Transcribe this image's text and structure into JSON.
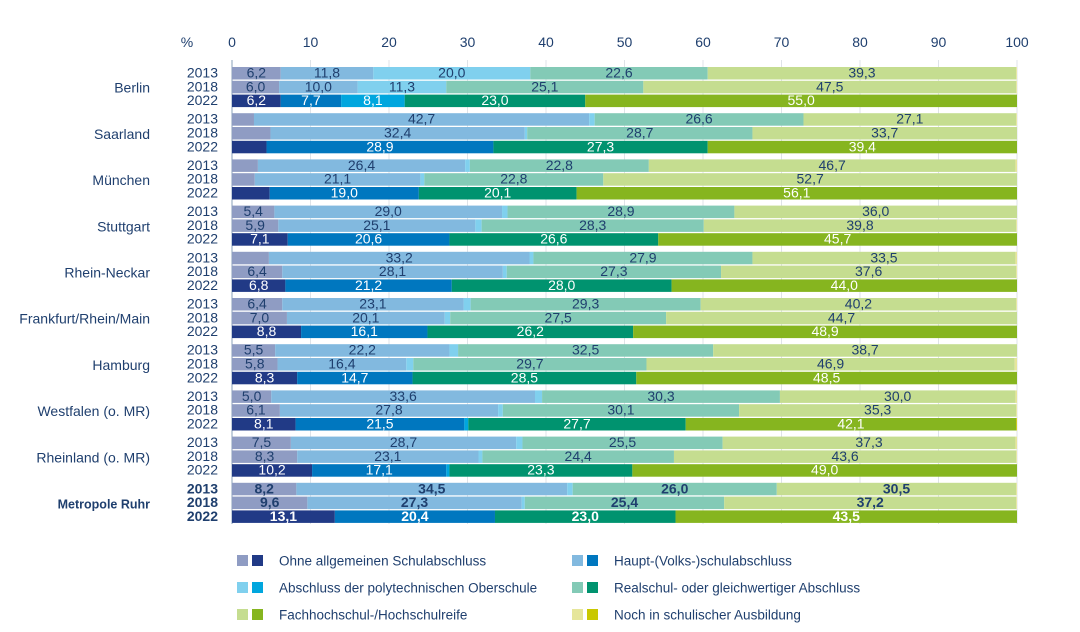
{
  "chart_data": {
    "type": "bar",
    "orientation": "horizontal",
    "stacked": true,
    "xlabel": "%",
    "xlim": [
      0,
      100
    ],
    "xticks": [
      0,
      10,
      20,
      30,
      40,
      50,
      60,
      70,
      80,
      90,
      100
    ],
    "grid": true,
    "legend_position": "bottom",
    "series_names": [
      "Ohne allgemeinen Schulabschluss",
      "Haupt-(Volks-)schulabschluss",
      "Abschluss der polytechnischen Oberschule",
      "Realschul- oder gleichwertiger Abschluss",
      "Fachhochschul-/Hochschulreife",
      "Noch in schulischer Ausbildung"
    ],
    "colors_light": [
      "#8f9cc3",
      "#82b9df",
      "#80d0ee",
      "#83cab6",
      "#c5dd90",
      "#e6e69a"
    ],
    "colors_dark": [
      "#213a86",
      "#0077bf",
      "#00a6de",
      "#00936f",
      "#86b51f",
      "#c9c800"
    ],
    "groups": [
      {
        "name": "Berlin",
        "bold": false,
        "rows": [
          {
            "year": "2013",
            "values": [
              6.2,
              11.8,
              20.0,
              22.6,
              39.3,
              0.1
            ]
          },
          {
            "year": "2018",
            "values": [
              6.0,
              10.0,
              11.3,
              25.1,
              47.5,
              0.1
            ]
          },
          {
            "year": "2022",
            "values": [
              6.2,
              7.7,
              8.1,
              23.0,
              55.0,
              0.0
            ]
          }
        ]
      },
      {
        "name": "Saarland",
        "bold": false,
        "rows": [
          {
            "year": "2013",
            "values": [
              2.8,
              42.7,
              0.7,
              26.6,
              27.1,
              0.1
            ]
          },
          {
            "year": "2018",
            "values": [
              4.9,
              32.4,
              0.3,
              28.7,
              33.7,
              0.0
            ]
          },
          {
            "year": "2022",
            "values": [
              4.4,
              28.9,
              0.0,
              27.3,
              39.4,
              0.0
            ]
          }
        ]
      },
      {
        "name": "München",
        "bold": false,
        "rows": [
          {
            "year": "2013",
            "values": [
              3.3,
              26.4,
              0.6,
              22.8,
              46.7,
              0.2
            ]
          },
          {
            "year": "2018",
            "values": [
              2.9,
              21.1,
              0.5,
              22.8,
              52.7,
              0.0
            ]
          },
          {
            "year": "2022",
            "values": [
              4.8,
              19.0,
              0.0,
              20.1,
              56.1,
              0.0
            ]
          }
        ]
      },
      {
        "name": "Stuttgart",
        "bold": false,
        "rows": [
          {
            "year": "2013",
            "values": [
              5.4,
              29.0,
              0.7,
              28.9,
              36.0,
              0.0
            ]
          },
          {
            "year": "2018",
            "values": [
              5.9,
              25.1,
              0.8,
              28.3,
              39.8,
              0.1
            ]
          },
          {
            "year": "2022",
            "values": [
              7.1,
              20.6,
              0.0,
              26.6,
              45.7,
              0.0
            ]
          }
        ]
      },
      {
        "name": "Rhein-Neckar",
        "bold": false,
        "rows": [
          {
            "year": "2013",
            "values": [
              4.7,
              33.2,
              0.5,
              27.9,
              33.5,
              0.2
            ]
          },
          {
            "year": "2018",
            "values": [
              6.4,
              28.1,
              0.5,
              27.3,
              37.6,
              0.1
            ]
          },
          {
            "year": "2022",
            "values": [
              6.8,
              21.2,
              0.0,
              28.0,
              44.0,
              0.0
            ]
          }
        ]
      },
      {
        "name": "Frankfurt/Rhein/Main",
        "bold": false,
        "rows": [
          {
            "year": "2013",
            "values": [
              6.4,
              23.1,
              0.9,
              29.3,
              40.2,
              0.1
            ]
          },
          {
            "year": "2018",
            "values": [
              7.0,
              20.1,
              0.7,
              27.5,
              44.7,
              0.0
            ]
          },
          {
            "year": "2022",
            "values": [
              8.8,
              16.1,
              0.0,
              26.2,
              48.9,
              0.0
            ]
          }
        ]
      },
      {
        "name": "Hamburg",
        "bold": false,
        "rows": [
          {
            "year": "2013",
            "values": [
              5.5,
              22.2,
              1.1,
              32.5,
              38.7,
              0.0
            ]
          },
          {
            "year": "2018",
            "values": [
              5.8,
              16.4,
              0.9,
              29.7,
              46.9,
              0.3
            ]
          },
          {
            "year": "2022",
            "values": [
              8.3,
              14.7,
              0.0,
              28.5,
              48.5,
              0.0
            ]
          }
        ]
      },
      {
        "name": "Westfalen (o. MR)",
        "bold": false,
        "rows": [
          {
            "year": "2013",
            "values": [
              5.0,
              33.6,
              0.9,
              30.3,
              30.0,
              0.2
            ]
          },
          {
            "year": "2018",
            "values": [
              6.1,
              27.8,
              0.6,
              30.1,
              35.3,
              0.1
            ]
          },
          {
            "year": "2022",
            "values": [
              8.1,
              21.5,
              0.5,
              27.7,
              42.1,
              0.1
            ]
          }
        ]
      },
      {
        "name": "Rheinland (o. MR)",
        "bold": false,
        "rows": [
          {
            "year": "2013",
            "values": [
              7.5,
              28.7,
              0.8,
              25.5,
              37.3,
              0.2
            ]
          },
          {
            "year": "2018",
            "values": [
              8.3,
              23.1,
              0.5,
              24.4,
              43.6,
              0.1
            ]
          },
          {
            "year": "2022",
            "values": [
              10.2,
              17.1,
              0.4,
              23.3,
              49.0,
              0.0
            ]
          }
        ]
      },
      {
        "name": "Metropole Ruhr",
        "bold": true,
        "rows": [
          {
            "year": "2013",
            "values": [
              8.2,
              34.5,
              0.7,
              26.0,
              30.5,
              0.1
            ]
          },
          {
            "year": "2018",
            "values": [
              9.6,
              27.3,
              0.4,
              25.4,
              37.2,
              0.1
            ]
          },
          {
            "year": "2022",
            "values": [
              13.1,
              20.4,
              0.0,
              23.0,
              43.5,
              0.0
            ]
          }
        ]
      }
    ]
  }
}
